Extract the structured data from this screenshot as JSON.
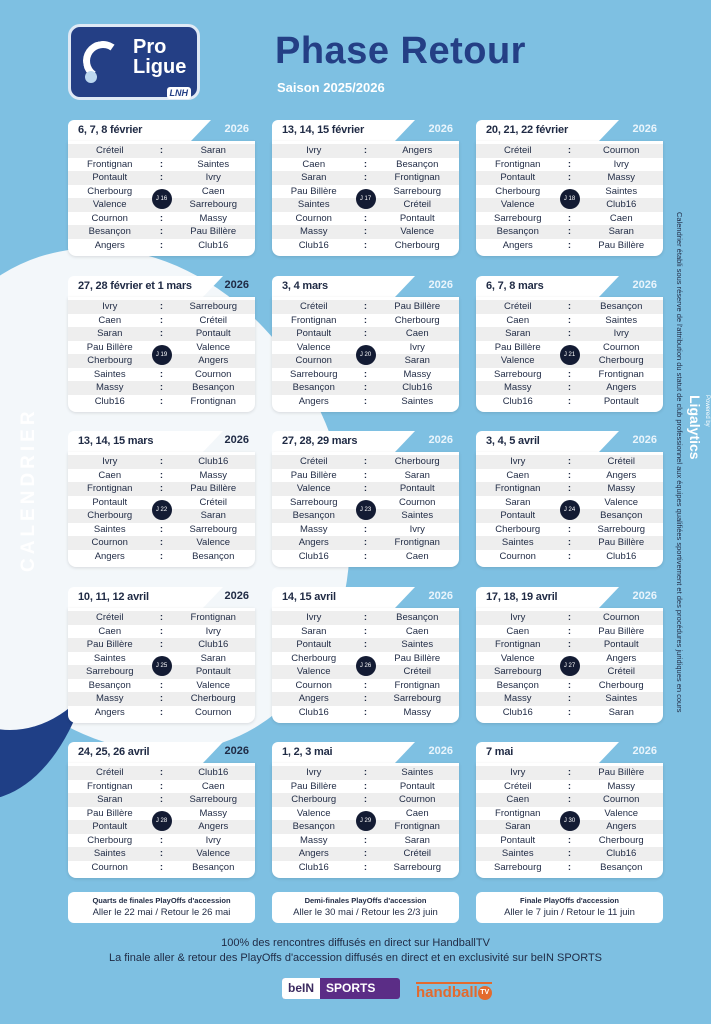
{
  "logo": {
    "line1": "Pro",
    "line2": "Ligue",
    "badge": "LNH"
  },
  "header": {
    "title": "Phase Retour",
    "subtitle": "Saison 2025/2026"
  },
  "side_label": "CALENDRIER",
  "side_note": "Calendrier établi sous réserve de l'attribution du statut de club professionnel aux équipes qualifiées sportivement et des procédures juridiques en cours",
  "powered_by": {
    "label": "Powered by",
    "brand": "Ligalytics"
  },
  "matchdays": [
    {
      "dates": "6, 7, 8 février",
      "year": "2026",
      "badge": "J 16",
      "matches": [
        [
          "Créteil",
          "Saran"
        ],
        [
          "Frontignan",
          "Saintes"
        ],
        [
          "Pontault",
          "Ivry"
        ],
        [
          "Cherbourg",
          "Caen"
        ],
        [
          "Valence",
          "Sarrebourg"
        ],
        [
          "Cournon",
          "Massy"
        ],
        [
          "Besançon",
          "Pau Billère"
        ],
        [
          "Angers",
          "Club16"
        ]
      ]
    },
    {
      "dates": "13, 14, 15 février",
      "year": "2026",
      "badge": "J 17",
      "matches": [
        [
          "Ivry",
          "Angers"
        ],
        [
          "Caen",
          "Besançon"
        ],
        [
          "Saran",
          "Frontignan"
        ],
        [
          "Pau Billère",
          "Sarrebourg"
        ],
        [
          "Saintes",
          "Créteil"
        ],
        [
          "Cournon",
          "Pontault"
        ],
        [
          "Massy",
          "Valence"
        ],
        [
          "Club16",
          "Cherbourg"
        ]
      ]
    },
    {
      "dates": "20, 21, 22 février",
      "year": "2026",
      "badge": "J 18",
      "matches": [
        [
          "Créteil",
          "Cournon"
        ],
        [
          "Frontignan",
          "Ivry"
        ],
        [
          "Pontault",
          "Massy"
        ],
        [
          "Cherbourg",
          "Saintes"
        ],
        [
          "Valence",
          "Club16"
        ],
        [
          "Sarrebourg",
          "Caen"
        ],
        [
          "Besançon",
          "Saran"
        ],
        [
          "Angers",
          "Pau Billère"
        ]
      ]
    },
    {
      "dates": "27, 28 février et 1 mars",
      "year": "2026",
      "badge": "J 19",
      "matches": [
        [
          "Ivry",
          "Sarrebourg"
        ],
        [
          "Caen",
          "Créteil"
        ],
        [
          "Saran",
          "Pontault"
        ],
        [
          "Pau Billère",
          "Valence"
        ],
        [
          "Cherbourg",
          "Angers"
        ],
        [
          "Saintes",
          "Cournon"
        ],
        [
          "Massy",
          "Besançon"
        ],
        [
          "Club16",
          "Frontignan"
        ]
      ]
    },
    {
      "dates": "3, 4 mars",
      "year": "2026",
      "badge": "J 20",
      "matches": [
        [
          "Créteil",
          "Pau Billère"
        ],
        [
          "Frontignan",
          "Cherbourg"
        ],
        [
          "Pontault",
          "Caen"
        ],
        [
          "Valence",
          "Ivry"
        ],
        [
          "Cournon",
          "Saran"
        ],
        [
          "Sarrebourg",
          "Massy"
        ],
        [
          "Besançon",
          "Club16"
        ],
        [
          "Angers",
          "Saintes"
        ]
      ]
    },
    {
      "dates": "6, 7, 8 mars",
      "year": "2026",
      "badge": "J 21",
      "matches": [
        [
          "Créteil",
          "Besançon"
        ],
        [
          "Caen",
          "Saintes"
        ],
        [
          "Saran",
          "Ivry"
        ],
        [
          "Pau Billère",
          "Cournon"
        ],
        [
          "Valence",
          "Cherbourg"
        ],
        [
          "Sarrebourg",
          "Frontignan"
        ],
        [
          "Massy",
          "Angers"
        ],
        [
          "Club16",
          "Pontault"
        ]
      ]
    },
    {
      "dates": "13, 14, 15 mars",
      "year": "2026",
      "badge": "J 22",
      "matches": [
        [
          "Ivry",
          "Club16"
        ],
        [
          "Caen",
          "Massy"
        ],
        [
          "Frontignan",
          "Pau Billère"
        ],
        [
          "Pontault",
          "Créteil"
        ],
        [
          "Cherbourg",
          "Saran"
        ],
        [
          "Saintes",
          "Sarrebourg"
        ],
        [
          "Cournon",
          "Valence"
        ],
        [
          "Angers",
          "Besançon"
        ]
      ]
    },
    {
      "dates": "27, 28, 29 mars",
      "year": "2026",
      "badge": "J 23",
      "matches": [
        [
          "Créteil",
          "Cherbourg"
        ],
        [
          "Pau Billère",
          "Saran"
        ],
        [
          "Valence",
          "Pontault"
        ],
        [
          "Sarrebourg",
          "Cournon"
        ],
        [
          "Besançon",
          "Saintes"
        ],
        [
          "Massy",
          "Ivry"
        ],
        [
          "Angers",
          "Frontignan"
        ],
        [
          "Club16",
          "Caen"
        ]
      ]
    },
    {
      "dates": "3, 4, 5 avril",
      "year": "2026",
      "badge": "J 24",
      "matches": [
        [
          "Ivry",
          "Créteil"
        ],
        [
          "Caen",
          "Angers"
        ],
        [
          "Frontignan",
          "Massy"
        ],
        [
          "Saran",
          "Valence"
        ],
        [
          "Pontault",
          "Besançon"
        ],
        [
          "Cherbourg",
          "Sarrebourg"
        ],
        [
          "Saintes",
          "Pau Billère"
        ],
        [
          "Cournon",
          "Club16"
        ]
      ]
    },
    {
      "dates": "10, 11, 12 avril",
      "year": "2026",
      "badge": "J 25",
      "matches": [
        [
          "Créteil",
          "Frontignan"
        ],
        [
          "Caen",
          "Ivry"
        ],
        [
          "Pau Billère",
          "Club16"
        ],
        [
          "Saintes",
          "Saran"
        ],
        [
          "Sarrebourg",
          "Pontault"
        ],
        [
          "Besançon",
          "Valence"
        ],
        [
          "Massy",
          "Cherbourg"
        ],
        [
          "Angers",
          "Cournon"
        ]
      ]
    },
    {
      "dates": "14, 15 avril",
      "year": "2026",
      "badge": "J 26",
      "matches": [
        [
          "Ivry",
          "Besançon"
        ],
        [
          "Saran",
          "Caen"
        ],
        [
          "Pontault",
          "Saintes"
        ],
        [
          "Cherbourg",
          "Pau Billère"
        ],
        [
          "Valence",
          "Créteil"
        ],
        [
          "Cournon",
          "Frontignan"
        ],
        [
          "Angers",
          "Sarrebourg"
        ],
        [
          "Club16",
          "Massy"
        ]
      ]
    },
    {
      "dates": "17, 18, 19 avril",
      "year": "2026",
      "badge": "J 27",
      "matches": [
        [
          "Ivry",
          "Cournon"
        ],
        [
          "Caen",
          "Pau Billère"
        ],
        [
          "Frontignan",
          "Pontault"
        ],
        [
          "Valence",
          "Angers"
        ],
        [
          "Sarrebourg",
          "Créteil"
        ],
        [
          "Besançon",
          "Cherbourg"
        ],
        [
          "Massy",
          "Saintes"
        ],
        [
          "Club16",
          "Saran"
        ]
      ]
    },
    {
      "dates": "24, 25, 26 avril",
      "year": "2026",
      "badge": "J 28",
      "matches": [
        [
          "Créteil",
          "Club16"
        ],
        [
          "Frontignan",
          "Caen"
        ],
        [
          "Saran",
          "Sarrebourg"
        ],
        [
          "Pau Billère",
          "Massy"
        ],
        [
          "Pontault",
          "Angers"
        ],
        [
          "Cherbourg",
          "Ivry"
        ],
        [
          "Saintes",
          "Valence"
        ],
        [
          "Cournon",
          "Besançon"
        ]
      ]
    },
    {
      "dates": "1, 2, 3 mai",
      "year": "2026",
      "badge": "J 29",
      "matches": [
        [
          "Ivry",
          "Saintes"
        ],
        [
          "Pau Billère",
          "Pontault"
        ],
        [
          "Cherbourg",
          "Cournon"
        ],
        [
          "Valence",
          "Caen"
        ],
        [
          "Besançon",
          "Frontignan"
        ],
        [
          "Massy",
          "Saran"
        ],
        [
          "Angers",
          "Créteil"
        ],
        [
          "Club16",
          "Sarrebourg"
        ]
      ]
    },
    {
      "dates": "7 mai",
      "year": "2026",
      "badge": "J 30",
      "matches": [
        [
          "Ivry",
          "Pau Billère"
        ],
        [
          "Créteil",
          "Massy"
        ],
        [
          "Caen",
          "Cournon"
        ],
        [
          "Frontignan",
          "Valence"
        ],
        [
          "Saran",
          "Angers"
        ],
        [
          "Pontault",
          "Cherbourg"
        ],
        [
          "Saintes",
          "Club16"
        ],
        [
          "Sarrebourg",
          "Besançon"
        ]
      ]
    }
  ],
  "playoffs": [
    {
      "title": "Quarts de finales PlayOffs d'accession",
      "dates": "Aller le 22 mai / Retour le 26 mai"
    },
    {
      "title": "Demi-finales PlayOffs d'accession",
      "dates": "Aller le 30 mai / Retour les 2/3 juin"
    },
    {
      "title": "Finale PlayOffs d'accession",
      "dates": "Aller le 7 juin / Retour le 11 juin"
    }
  ],
  "footer": {
    "line1": "100% des rencontres diffusés en direct sur HandballTV",
    "line2": "La finale aller & retour des PlayOffs d'accession diffusés en direct et en exclusivité sur beIN SPORTS"
  },
  "broadcasters": {
    "bein_left": "beIN",
    "bein_right": "SPORTS",
    "handball": "handball",
    "tv": "TV"
  }
}
